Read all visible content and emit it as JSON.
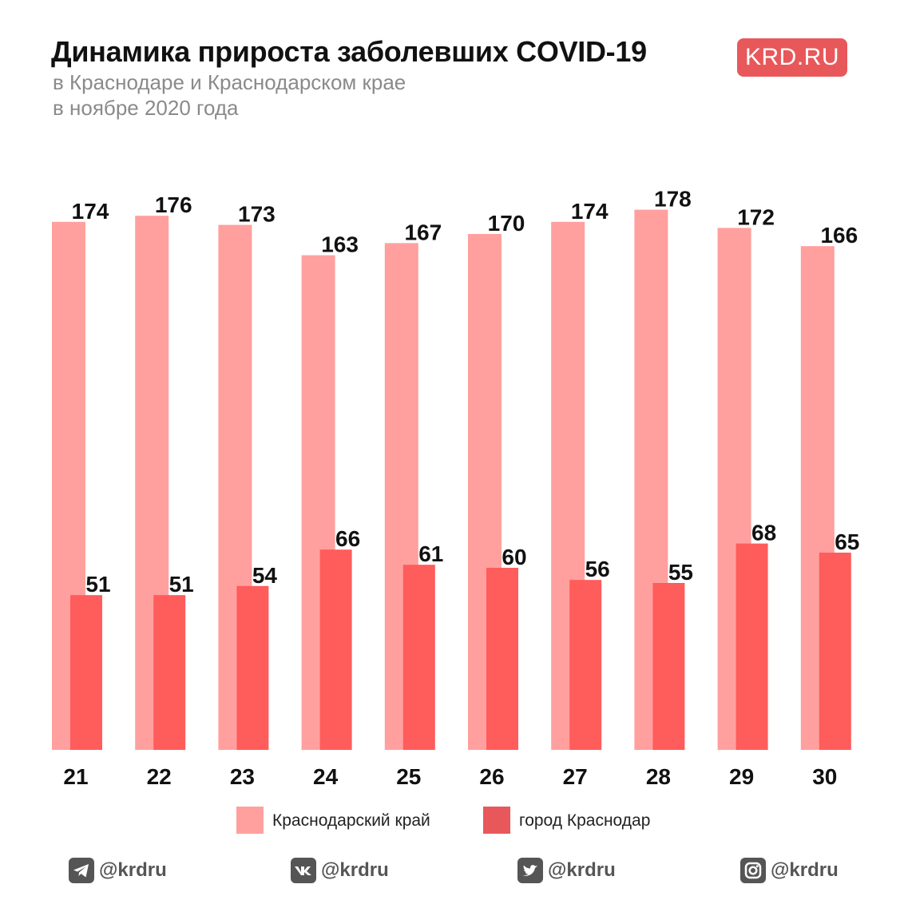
{
  "header": {
    "title": "Динамика прироста заболевших COVID-19",
    "subtitle_line1": "в Краснодаре и Краснодарском крае",
    "subtitle_line2": "в ноябре 2020 года",
    "brand": "KRD.RU"
  },
  "colors": {
    "region": "#ffa09e",
    "city": "#ff5c5c",
    "brand": "#e8585a",
    "label": "#111111"
  },
  "chart_data": {
    "type": "bar",
    "categories": [
      "21",
      "22",
      "23",
      "24",
      "25",
      "26",
      "27",
      "28",
      "29",
      "30"
    ],
    "series": [
      {
        "name": "Краснодарский край",
        "values": [
          174,
          176,
          173,
          163,
          167,
          170,
          174,
          178,
          172,
          166
        ]
      },
      {
        "name": "город Краснодар",
        "values": [
          51,
          51,
          54,
          66,
          61,
          60,
          56,
          55,
          68,
          65
        ]
      }
    ],
    "title": "Динамика прироста заболевших COVID-19",
    "legend_position": "bottom",
    "grid": false
  },
  "legend": {
    "items": [
      {
        "label": "Краснодарский край",
        "icon": "region-swatch"
      },
      {
        "label": "город Краснодар",
        "icon": "city-swatch"
      }
    ]
  },
  "social": [
    {
      "icon": "telegram-icon",
      "handle": "@krdru"
    },
    {
      "icon": "vk-icon",
      "handle": "@krdru"
    },
    {
      "icon": "twitter-icon",
      "handle": "@krdru"
    },
    {
      "icon": "instagram-icon",
      "handle": "@krdru"
    }
  ]
}
